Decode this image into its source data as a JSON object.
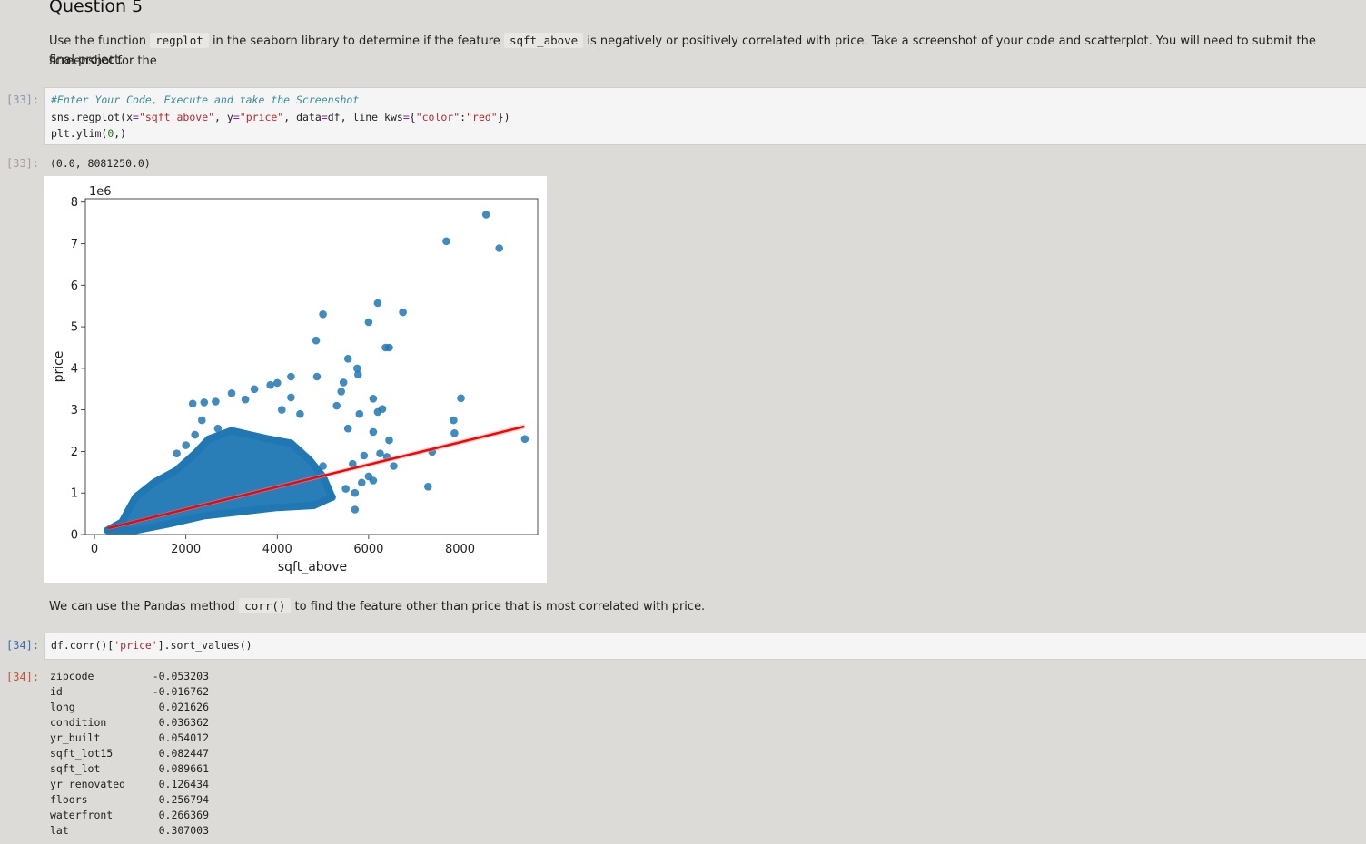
{
  "section_title": "Question 5",
  "instruction": {
    "p1": "Use the function ",
    "code1": "regplot",
    "p2": " in the seaborn library to determine if the feature ",
    "code2": "sqft_above",
    "p3": " is negatively or positively correlated with price. Take a screenshot of your code and scatterplot. You will need to submit the screenshot for the",
    "p4": "final project."
  },
  "cell1": {
    "in_prompt": "[33]:",
    "out_prompt": "[33]:",
    "line1": "#Enter Your Code, Execute and take the Screenshot",
    "line2": {
      "a": "sns.regplot(x",
      "b": "=",
      "c": "\"sqft_above\"",
      "d": ", y",
      "e": "=",
      "f": "\"price\"",
      "g": ", data",
      "h": "=",
      "i": "df, line_kws",
      "j": "=",
      "k": "{",
      "l": "\"color\"",
      "m": ":",
      "n": "\"red\"",
      "o": "})"
    },
    "line3": {
      "a": "plt.ylim(",
      "b": "0",
      "c": ",)"
    },
    "output_text": "(0.0, 8081250.0)"
  },
  "chart_data": {
    "type": "scatter",
    "xlabel": "sqft_above",
    "ylabel": "price",
    "y_offset_text": "1e6",
    "xlim": [
      -200,
      9700
    ],
    "ylim": [
      0,
      8081250
    ],
    "x_ticks": [
      0,
      2000,
      4000,
      6000,
      8000
    ],
    "x_tick_labels": [
      "0",
      "2000",
      "4000",
      "6000",
      "8000"
    ],
    "y_ticks": [
      0,
      1000000,
      2000000,
      3000000,
      4000000,
      5000000,
      6000000,
      7000000,
      8000000
    ],
    "y_tick_labels": [
      "0",
      "1",
      "2",
      "3",
      "4",
      "5",
      "6",
      "7",
      "8"
    ],
    "point_color": "#1f77b4",
    "regression_line": {
      "color": "#ff0000",
      "x": [
        290,
        9410
      ],
      "y": [
        150000,
        2600000
      ]
    },
    "outliers": [
      [
        8570,
        7700000
      ],
      [
        7700,
        7060000
      ],
      [
        8860,
        6890000
      ],
      [
        6200,
        5570000
      ],
      [
        5000,
        5300000
      ],
      [
        6750,
        5350000
      ],
      [
        6000,
        5110000
      ],
      [
        6370,
        4500000
      ],
      [
        6450,
        4500000
      ],
      [
        4850,
        4670000
      ],
      [
        5550,
        4230000
      ],
      [
        5750,
        4000000
      ],
      [
        5770,
        3850000
      ],
      [
        4300,
        3800000
      ],
      [
        4870,
        3800000
      ],
      [
        5450,
        3660000
      ],
      [
        5400,
        3440000
      ],
      [
        6100,
        3270000
      ],
      [
        8020,
        3280000
      ],
      [
        6200,
        2950000
      ],
      [
        6300,
        3020000
      ],
      [
        7860,
        2750000
      ],
      [
        7880,
        2440000
      ],
      [
        6100,
        2470000
      ],
      [
        6450,
        2270000
      ],
      [
        9420,
        2300000
      ],
      [
        7390,
        1990000
      ],
      [
        6250,
        1950000
      ],
      [
        6400,
        1870000
      ],
      [
        6550,
        1650000
      ],
      [
        7300,
        1150000
      ],
      [
        5800,
        2900000
      ],
      [
        5300,
        3100000
      ],
      [
        5550,
        2550000
      ],
      [
        5900,
        1900000
      ],
      [
        5650,
        1700000
      ],
      [
        6000,
        1400000
      ],
      [
        6100,
        1300000
      ],
      [
        5700,
        1000000
      ],
      [
        5200,
        900000
      ],
      [
        5850,
        1250000
      ],
      [
        5000,
        1650000
      ],
      [
        5500,
        1100000
      ],
      [
        4300,
        3300000
      ],
      [
        4000,
        3650000
      ],
      [
        3850,
        3600000
      ],
      [
        3300,
        3250000
      ],
      [
        2650,
        3200000
      ],
      [
        2400,
        3180000
      ],
      [
        2150,
        3150000
      ],
      [
        2350,
        2750000
      ],
      [
        2000,
        2150000
      ],
      [
        2200,
        2400000
      ],
      [
        2700,
        2550000
      ],
      [
        3500,
        3500000
      ],
      [
        4100,
        3000000
      ],
      [
        4500,
        2900000
      ],
      [
        3000,
        3400000
      ],
      [
        1800,
        1950000
      ],
      [
        5700,
        600000
      ]
    ]
  },
  "markdown2": {
    "p1": "We can use the Pandas method ",
    "code": "corr()",
    "p2": " to find the feature other than price that is most correlated with price."
  },
  "cell2": {
    "in_prompt": "[34]:",
    "out_prompt": "[34]:",
    "code": {
      "a": "df.corr()[",
      "b": "'price'",
      "c": "].sort_values()"
    },
    "series": [
      {
        "name": "zipcode",
        "value": "-0.053203"
      },
      {
        "name": "id",
        "value": "-0.016762"
      },
      {
        "name": "long",
        "value": "0.021626"
      },
      {
        "name": "condition",
        "value": "0.036362"
      },
      {
        "name": "yr_built",
        "value": "0.054012"
      },
      {
        "name": "sqft_lot15",
        "value": "0.082447"
      },
      {
        "name": "sqft_lot",
        "value": "0.089661"
      },
      {
        "name": "yr_renovated",
        "value": "0.126434"
      },
      {
        "name": "floors",
        "value": "0.256794"
      },
      {
        "name": "waterfront",
        "value": "0.266369"
      },
      {
        "name": "lat",
        "value": "0.307003"
      }
    ]
  }
}
